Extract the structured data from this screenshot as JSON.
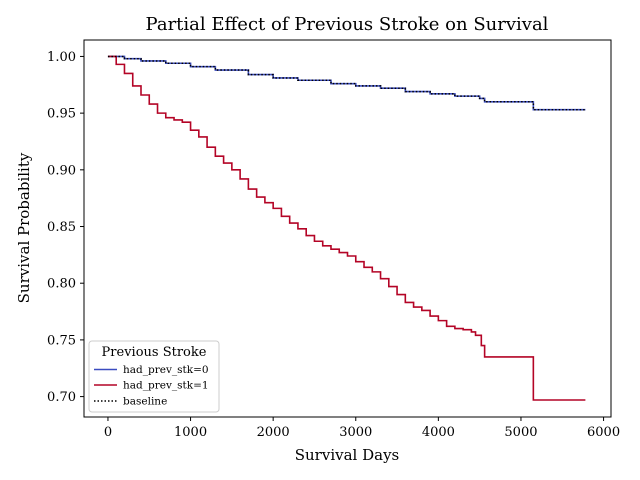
{
  "chart_data": {
    "type": "line",
    "title": "Partial Effect of Previous Stroke on Survival",
    "xlabel": "Survival Days",
    "ylabel": "Survival Probability",
    "xlim": [
      -290,
      6090
    ],
    "ylim": [
      0.682,
      1.0145
    ],
    "xticks": [
      0,
      1000,
      2000,
      3000,
      4000,
      5000,
      6000
    ],
    "yticks": [
      0.7,
      0.75,
      0.8,
      0.85,
      0.9,
      0.95,
      1.0
    ],
    "ytick_labels": [
      "0.70",
      "0.75",
      "0.80",
      "0.85",
      "0.90",
      "0.95",
      "1.00"
    ],
    "grid": false,
    "legend": {
      "title": "Previous Stroke",
      "placement": "lower-left",
      "entries": [
        {
          "label": "had_prev_stk=0",
          "color": "#3b4cc0",
          "style": "solid"
        },
        {
          "label": "had_prev_stk=1",
          "color": "#b40426",
          "style": "solid"
        },
        {
          "label": "baseline",
          "color": "#000000",
          "style": "dotted"
        }
      ]
    },
    "series": [
      {
        "name": "had_prev_stk=0",
        "color": "#3b4cc0",
        "step": true,
        "x": [
          0,
          200,
          400,
          700,
          1000,
          1300,
          1700,
          2000,
          2300,
          2700,
          3000,
          3300,
          3600,
          3900,
          4200,
          4500,
          4560,
          5100,
          5150,
          5780
        ],
        "y": [
          1.0,
          0.998,
          0.996,
          0.994,
          0.991,
          0.988,
          0.984,
          0.981,
          0.979,
          0.976,
          0.974,
          0.972,
          0.969,
          0.967,
          0.965,
          0.963,
          0.96,
          0.96,
          0.953,
          0.953
        ]
      },
      {
        "name": "had_prev_stk=1",
        "color": "#b40426",
        "step": true,
        "x": [
          0,
          100,
          200,
          300,
          400,
          500,
          600,
          700,
          800,
          900,
          1000,
          1100,
          1200,
          1300,
          1400,
          1500,
          1600,
          1700,
          1800,
          1900,
          2000,
          2100,
          2200,
          2300,
          2400,
          2500,
          2600,
          2700,
          2800,
          2900,
          3000,
          3100,
          3200,
          3300,
          3400,
          3500,
          3600,
          3700,
          3800,
          3900,
          4000,
          4100,
          4200,
          4300,
          4400,
          4450,
          4520,
          4560,
          5100,
          5150,
          5780
        ],
        "y": [
          1.0,
          0.993,
          0.985,
          0.974,
          0.966,
          0.958,
          0.95,
          0.946,
          0.944,
          0.942,
          0.935,
          0.929,
          0.92,
          0.912,
          0.906,
          0.9,
          0.892,
          0.883,
          0.876,
          0.871,
          0.866,
          0.859,
          0.853,
          0.848,
          0.842,
          0.837,
          0.833,
          0.83,
          0.827,
          0.824,
          0.819,
          0.814,
          0.81,
          0.804,
          0.797,
          0.79,
          0.783,
          0.779,
          0.776,
          0.771,
          0.767,
          0.762,
          0.76,
          0.759,
          0.757,
          0.754,
          0.745,
          0.735,
          0.735,
          0.697,
          0.697
        ]
      },
      {
        "name": "baseline",
        "color": "#000000",
        "step": true,
        "dashed": true,
        "x": [
          0,
          200,
          400,
          700,
          1000,
          1300,
          1700,
          2000,
          2300,
          2700,
          3000,
          3300,
          3600,
          3900,
          4200,
          4500,
          4560,
          5100,
          5150,
          5780
        ],
        "y": [
          1.0,
          0.998,
          0.996,
          0.994,
          0.991,
          0.988,
          0.984,
          0.981,
          0.979,
          0.976,
          0.974,
          0.972,
          0.969,
          0.967,
          0.965,
          0.963,
          0.96,
          0.96,
          0.953,
          0.953
        ]
      }
    ]
  }
}
